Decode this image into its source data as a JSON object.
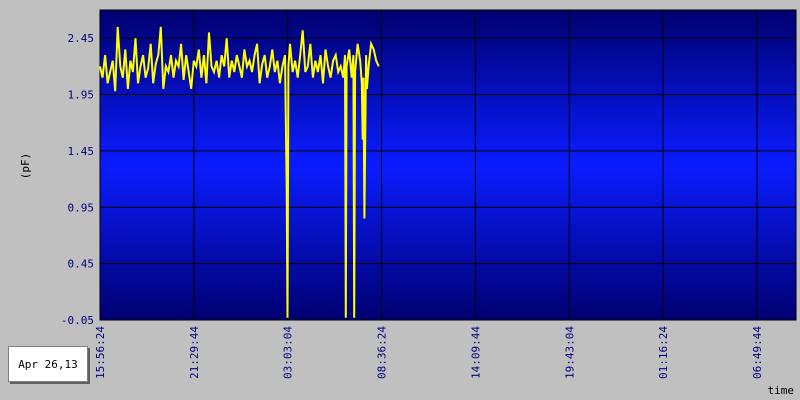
{
  "chart_data": {
    "type": "line",
    "title": "",
    "xlabel": "time",
    "ylabel": "(pF)",
    "date_label": "Apr 26,13",
    "grid": true,
    "ylim": [
      -0.05,
      2.7
    ],
    "y_ticks": [
      "2.45",
      "1.95",
      "1.45",
      "0.95",
      "0.45",
      "-0.05"
    ],
    "y_tick_values": [
      2.45,
      1.95,
      1.45,
      0.95,
      0.45,
      -0.05
    ],
    "x_ticks": [
      "15:56:24",
      "21:29:44",
      "03:03:04",
      "08:36:24",
      "14:09:44",
      "19:43:04",
      "01:16:24",
      "06:49:44"
    ],
    "x_tick_hours": [
      0,
      5.5556,
      11.1111,
      16.6667,
      22.2222,
      27.7778,
      33.3333,
      38.8889
    ],
    "xlim_hours": [
      0,
      41.2
    ],
    "series": [
      {
        "color": "#ffff00",
        "x_hours": [
          0.0,
          0.15,
          0.3,
          0.45,
          0.6,
          0.75,
          0.9,
          1.05,
          1.2,
          1.35,
          1.5,
          1.65,
          1.8,
          1.95,
          2.1,
          2.25,
          2.4,
          2.55,
          2.7,
          2.85,
          3.0,
          3.15,
          3.3,
          3.45,
          3.6,
          3.75,
          3.9,
          4.05,
          4.2,
          4.35,
          4.5,
          4.65,
          4.8,
          4.95,
          5.1,
          5.25,
          5.4,
          5.55,
          5.7,
          5.85,
          6.0,
          6.15,
          6.3,
          6.45,
          6.6,
          6.75,
          6.9,
          7.05,
          7.2,
          7.35,
          7.5,
          7.65,
          7.8,
          7.95,
          8.1,
          8.25,
          8.4,
          8.55,
          8.7,
          8.85,
          9.0,
          9.15,
          9.3,
          9.45,
          9.6,
          9.75,
          9.9,
          10.05,
          10.2,
          10.35,
          10.5,
          10.65,
          10.8,
          10.95,
          11.05,
          11.1,
          11.15,
          11.25,
          11.4,
          11.55,
          11.7,
          11.85,
          12.0,
          12.15,
          12.3,
          12.45,
          12.6,
          12.75,
          12.9,
          13.05,
          13.2,
          13.35,
          13.5,
          13.65,
          13.8,
          13.95,
          14.1,
          14.25,
          14.4,
          14.5,
          14.55,
          14.6,
          14.75,
          14.9,
          15.0,
          15.05,
          15.1,
          15.25,
          15.4,
          15.5,
          15.55,
          15.6,
          15.65,
          15.75,
          15.8,
          15.9,
          16.05,
          16.2,
          16.35,
          16.5
        ],
        "y": [
          2.2,
          2.1,
          2.3,
          2.05,
          2.15,
          2.25,
          1.98,
          2.55,
          2.2,
          2.1,
          2.35,
          2.0,
          2.25,
          2.15,
          2.45,
          2.05,
          2.2,
          2.3,
          2.1,
          2.18,
          2.4,
          2.05,
          2.22,
          2.3,
          2.55,
          2.0,
          2.2,
          2.15,
          2.3,
          2.1,
          2.25,
          2.2,
          2.4,
          2.08,
          2.3,
          2.15,
          2.0,
          2.25,
          2.2,
          2.35,
          2.1,
          2.3,
          2.05,
          2.5,
          2.2,
          2.15,
          2.25,
          2.1,
          2.3,
          2.2,
          2.45,
          2.1,
          2.25,
          2.15,
          2.3,
          2.2,
          2.1,
          2.35,
          2.2,
          2.25,
          2.15,
          2.3,
          2.4,
          2.05,
          2.22,
          2.3,
          2.1,
          2.2,
          2.35,
          2.15,
          2.25,
          2.05,
          2.2,
          2.3,
          1.1,
          -0.03,
          2.2,
          2.4,
          2.15,
          2.25,
          2.1,
          2.3,
          2.52,
          2.15,
          2.2,
          2.4,
          2.1,
          2.25,
          2.15,
          2.3,
          2.05,
          2.35,
          2.2,
          2.1,
          2.25,
          2.3,
          2.15,
          2.2,
          2.1,
          2.3,
          -0.03,
          2.2,
          2.35,
          2.1,
          2.3,
          -0.03,
          2.15,
          2.4,
          2.25,
          2.05,
          1.55,
          2.1,
          0.85,
          2.3,
          2.0,
          2.2,
          2.4,
          2.35,
          2.25,
          2.2
        ]
      }
    ]
  }
}
